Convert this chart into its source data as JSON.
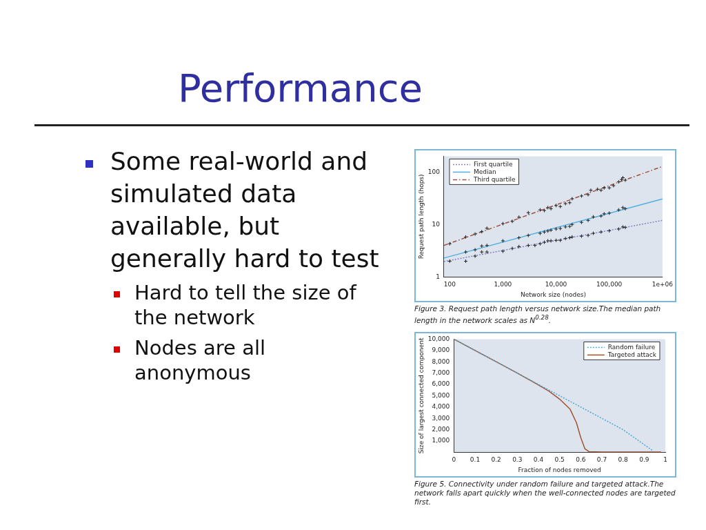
{
  "chart_data": [
    {
      "type": "other",
      "title": "Performance",
      "annotations": [
        "Some real-world and simulated data available, but generally hard to test",
        "Hard to tell the size of the network",
        "Nodes are all anonymous"
      ]
    },
    {
      "type": "line",
      "xlabel": "Network size (nodes)",
      "ylabel": "Request path length (hops)",
      "log": "xy",
      "grid": false,
      "legend": "top left",
      "xlim": [
        78,
        1000000
      ],
      "xticks": [
        100,
        {
          "value": 1000,
          "label": "1,000"
        },
        {
          "value": 10000,
          "label": "10,000"
        },
        {
          "value": 100000,
          "label": "100,000"
        },
        {
          "value": 1000000,
          "label": "1e+06"
        }
      ],
      "ylim": [
        1,
        200
      ],
      "yticks": [
        1,
        10,
        100
      ],
      "annotations": [
        "Figure 3. Request path length versus network size.The median path length in the network scales as N$^{0.28}$."
      ],
      "series": [
        {
          "name": "First quartile",
          "color": "#8a80c0",
          "line_style": "dotted",
          "marker": "none",
          "x": [
            78,
            1000000
          ],
          "values": [
            1.97,
            12
          ]
        },
        {
          "name": "Median",
          "color": "#4fb0e0",
          "line_style": "solid",
          "marker": "none",
          "x": [
            78,
            1000000
          ],
          "values": [
            2.3,
            30.7
          ]
        },
        {
          "name": "Third quartile",
          "color": "#a05040",
          "line_style": "dashed",
          "marker": "none",
          "x": [
            78,
            1000000
          ],
          "values": [
            4.0,
            128
          ]
        },
        {
          "type": "scatter",
          "color": "#202020",
          "marker": "cross",
          "x": [
            100,
            200,
            300,
            400,
            500,
            1000,
            1500,
            2000,
            3000,
            4000,
            5000,
            6000,
            7000,
            8000,
            10000,
            12000,
            15000,
            18000,
            20000,
            30000,
            40000,
            50000,
            70000,
            100000,
            150000,
            180000,
            200000
          ],
          "values": [
            2.0,
            2.0,
            2.5,
            3.0,
            3.0,
            3.1,
            3.5,
            3.8,
            4.0,
            4.0,
            4.3,
            4.6,
            4.9,
            4.9,
            5.0,
            5.0,
            5.4,
            5.6,
            5.8,
            6.0,
            6.2,
            6.8,
            7.2,
            7.6,
            8.2,
            9.0,
            8.8
          ]
        },
        {
          "type": "scatter",
          "color": "#202020",
          "marker": "cross",
          "x": [
            200,
            300,
            400,
            500,
            1000,
            2000,
            3000,
            5000,
            6000,
            7000,
            8000,
            10000,
            12000,
            15000,
            18000,
            20000,
            30000,
            40000,
            50000,
            70000,
            80000,
            100000,
            150000,
            180000,
            200000
          ],
          "values": [
            3.0,
            3.3,
            3.9,
            4.0,
            4.9,
            5.6,
            6.2,
            6.8,
            7.2,
            7.5,
            7.8,
            8.2,
            8.4,
            9.0,
            9.2,
            10,
            11,
            12,
            14,
            14.5,
            16,
            16.5,
            19,
            21,
            20
          ]
        },
        {
          "type": "scatter",
          "color": "#202020",
          "marker": "cross",
          "x": [
            100,
            200,
            300,
            400,
            500,
            1000,
            1500,
            2000,
            3000,
            5000,
            6000,
            7000,
            8000,
            10000,
            12000,
            15000,
            18000,
            20000,
            30000,
            40000,
            45000,
            60000,
            70000,
            80000,
            100000,
            120000,
            150000,
            170000,
            180000,
            200000
          ],
          "values": [
            4.3,
            5.8,
            6.6,
            7.3,
            8.5,
            10.4,
            11.5,
            13.8,
            16.8,
            19,
            18.5,
            21,
            20,
            23,
            22,
            25,
            26,
            31,
            35,
            37,
            45,
            47,
            45,
            50,
            50,
            55,
            65,
            72,
            78,
            70
          ]
        }
      ]
    },
    {
      "type": "line",
      "xlabel": "Fraction of nodes removed",
      "ylabel": "Size of largest connected component",
      "grid": false,
      "legend": "top right",
      "xlim": [
        0,
        1
      ],
      "xticks": [
        0,
        0.1,
        0.2,
        0.3,
        0.4,
        0.5,
        0.6,
        0.7,
        0.8,
        0.9,
        1
      ],
      "ylim": [
        0,
        10000
      ],
      "yticks": [
        {
          "value": 1000,
          "label": "1,000"
        },
        {
          "value": 2000,
          "label": "2,000"
        },
        {
          "value": 3000,
          "label": "3,000"
        },
        {
          "value": 4000,
          "label": "4,000"
        },
        {
          "value": 5000,
          "label": "5,000"
        },
        {
          "value": 6000,
          "label": "6,000"
        },
        {
          "value": 7000,
          "label": "7,000"
        },
        {
          "value": 8000,
          "label": "8,000"
        },
        {
          "value": 9000,
          "label": "9,000"
        },
        {
          "value": 10000,
          "label": "10,000"
        }
      ],
      "annotations": [
        "Figure 5. Connectivity under random failure and targeted attack.The network falls apart quickly when the well-connected nodes are targeted first."
      ],
      "series": [
        {
          "name": "Random failure",
          "color": "#4aa8d8",
          "line_style": "dotted",
          "marker": "none",
          "x": [
            0,
            0.2,
            0.4,
            0.6,
            0.8,
            0.94
          ],
          "values": [
            10000,
            8000,
            6000,
            4000,
            2000,
            150
          ]
        },
        {
          "name": "Targeted attack",
          "color": "#a0522d",
          "line_style": "solid",
          "marker": "none",
          "x": [
            0,
            0.2,
            0.3,
            0.4,
            0.45,
            0.5,
            0.55,
            0.57,
            0.58,
            0.6,
            0.62,
            0.64,
            0.7,
            0.98
          ],
          "values": [
            10000,
            8000,
            7000,
            5950,
            5400,
            4700,
            3800,
            3000,
            2600,
            1300,
            300,
            50,
            20,
            20
          ]
        }
      ]
    }
  ]
}
